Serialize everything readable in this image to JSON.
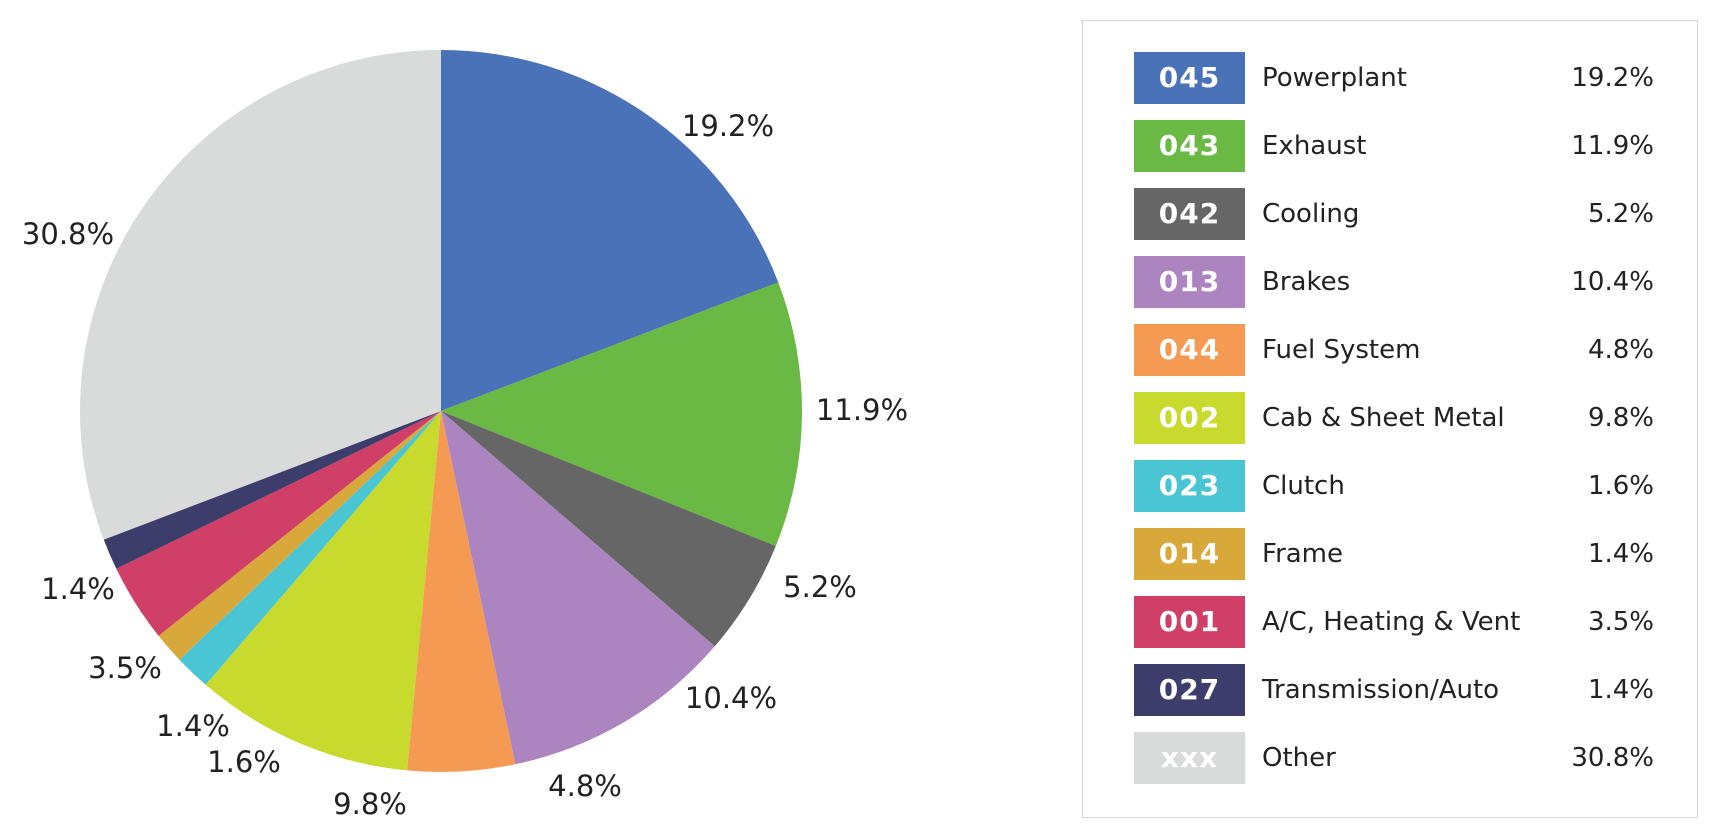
{
  "chart_data": {
    "type": "pie",
    "start_angle": "12 o'clock",
    "direction": "clockwise",
    "legend_position": "right",
    "slices": [
      {
        "code": "045",
        "name": "Powerplant",
        "value": 19.2,
        "label": "19.2%",
        "color": "#4A72B8"
      },
      {
        "code": "043",
        "name": "Exhaust",
        "value": 11.9,
        "label": "11.9%",
        "color": "#6AB944"
      },
      {
        "code": "042",
        "name": "Cooling",
        "value": 5.2,
        "label": "5.2%",
        "color": "#666666"
      },
      {
        "code": "013",
        "name": "Brakes",
        "value": 10.4,
        "label": "10.4%",
        "color": "#AC84C0"
      },
      {
        "code": "044",
        "name": "Fuel System",
        "value": 4.8,
        "label": "4.8%",
        "color": "#F59A52"
      },
      {
        "code": "002",
        "name": "Cab & Sheet Metal",
        "value": 9.8,
        "label": "9.8%",
        "color": "#C7DA2D"
      },
      {
        "code": "023",
        "name": "Clutch",
        "value": 1.6,
        "label": "1.6%",
        "color": "#4AC5D4"
      },
      {
        "code": "014",
        "name": "Frame",
        "value": 1.4,
        "label": "1.4%",
        "color": "#D9A83A"
      },
      {
        "code": "001",
        "name": "A/C, Heating & Vent",
        "value": 3.5,
        "label": "3.5%",
        "color": "#CF3F68"
      },
      {
        "code": "027",
        "name": "Transmission/Auto",
        "value": 1.4,
        "label": "1.4%",
        "color": "#3D3D6B"
      },
      {
        "code": "xxx",
        "name": "Other",
        "value": 30.8,
        "label": "30.8%",
        "color": "#D9DADA"
      }
    ]
  }
}
